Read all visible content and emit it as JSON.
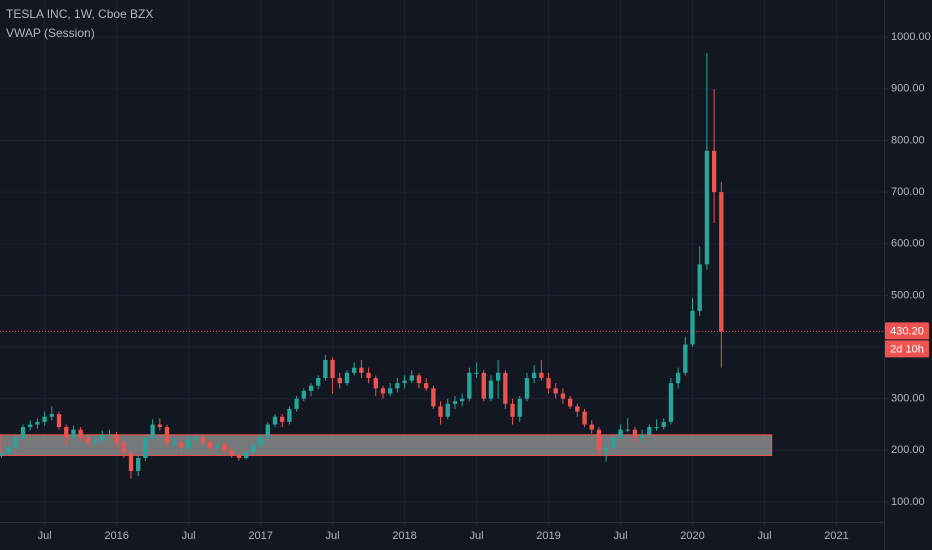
{
  "chart_data": {
    "type": "candlestick",
    "title": "TESLA INC, 1W, Cboe BZX",
    "subtitle": "VWAP (Session)",
    "up_color": "#26a69a",
    "down_color": "#ef5350",
    "grid": true,
    "xlim": [
      2015.19,
      2021.33
    ],
    "xticks": [
      {
        "value": 2015.5,
        "label": "Jul"
      },
      {
        "value": 2016,
        "label": "2016"
      },
      {
        "value": 2016.5,
        "label": "Jul"
      },
      {
        "value": 2017,
        "label": "2017"
      },
      {
        "value": 2017.5,
        "label": "Jul"
      },
      {
        "value": 2018,
        "label": "2018"
      },
      {
        "value": 2018.5,
        "label": "Jul"
      },
      {
        "value": 2019,
        "label": "2019"
      },
      {
        "value": 2019.5,
        "label": "Jul"
      },
      {
        "value": 2020,
        "label": "2020"
      },
      {
        "value": 2020.5,
        "label": "Jul"
      },
      {
        "value": 2021,
        "label": "2021"
      }
    ],
    "ylim": [
      65,
      1072
    ],
    "yticks": [
      {
        "value": 100,
        "label": "100.00"
      },
      {
        "value": 200,
        "label": "200.00"
      },
      {
        "value": 300,
        "label": "300.00"
      },
      {
        "value": 400,
        "label": "400.00"
      },
      {
        "value": 500,
        "label": "500.00"
      },
      {
        "value": 600,
        "label": "600.00"
      },
      {
        "value": 700,
        "label": "700.00"
      },
      {
        "value": 800,
        "label": "800.00"
      },
      {
        "value": 900,
        "label": "900.00"
      },
      {
        "value": 1000,
        "label": "1000.00"
      }
    ],
    "x": [
      2015.2,
      2015.25,
      2015.3,
      2015.35,
      2015.4,
      2015.45,
      2015.5,
      2015.55,
      2015.6,
      2015.65,
      2015.7,
      2015.75,
      2015.8,
      2015.85,
      2015.9,
      2015.95,
      2016.0,
      2016.05,
      2016.1,
      2016.15,
      2016.2,
      2016.25,
      2016.3,
      2016.35,
      2016.4,
      2016.45,
      2016.5,
      2016.55,
      2016.6,
      2016.65,
      2016.7,
      2016.75,
      2016.8,
      2016.85,
      2016.9,
      2016.95,
      2017.0,
      2017.05,
      2017.1,
      2017.15,
      2017.2,
      2017.25,
      2017.3,
      2017.35,
      2017.4,
      2017.45,
      2017.5,
      2017.55,
      2017.6,
      2017.65,
      2017.7,
      2017.75,
      2017.8,
      2017.85,
      2017.9,
      2017.95,
      2018.0,
      2018.05,
      2018.1,
      2018.15,
      2018.2,
      2018.25,
      2018.3,
      2018.35,
      2018.4,
      2018.45,
      2018.5,
      2018.55,
      2018.6,
      2018.65,
      2018.7,
      2018.75,
      2018.8,
      2018.85,
      2018.9,
      2018.95,
      2019.0,
      2019.05,
      2019.1,
      2019.15,
      2019.2,
      2019.25,
      2019.3,
      2019.35,
      2019.4,
      2019.45,
      2019.5,
      2019.55,
      2019.6,
      2019.65,
      2019.7,
      2019.75,
      2019.8,
      2019.85,
      2019.9,
      2019.95,
      2020.0,
      2020.05,
      2020.1,
      2020.15,
      2020.2
    ],
    "ohlc": [
      [
        190,
        200,
        185,
        195
      ],
      [
        195,
        210,
        190,
        205
      ],
      [
        205,
        230,
        200,
        225
      ],
      [
        225,
        250,
        220,
        245
      ],
      [
        245,
        258,
        238,
        250
      ],
      [
        250,
        262,
        242,
        255
      ],
      [
        255,
        275,
        248,
        265
      ],
      [
        265,
        285,
        258,
        270
      ],
      [
        270,
        275,
        240,
        245
      ],
      [
        245,
        250,
        210,
        225
      ],
      [
        225,
        248,
        215,
        240
      ],
      [
        240,
        245,
        218,
        225
      ],
      [
        225,
        230,
        205,
        215
      ],
      [
        215,
        228,
        208,
        220
      ],
      [
        220,
        238,
        215,
        230
      ],
      [
        230,
        240,
        222,
        230
      ],
      [
        230,
        235,
        205,
        215
      ],
      [
        215,
        220,
        185,
        195
      ],
      [
        195,
        200,
        145,
        160
      ],
      [
        160,
        190,
        150,
        185
      ],
      [
        185,
        230,
        180,
        225
      ],
      [
        225,
        260,
        220,
        250
      ],
      [
        250,
        262,
        238,
        245
      ],
      [
        245,
        250,
        205,
        215
      ],
      [
        215,
        225,
        208,
        215
      ],
      [
        215,
        220,
        195,
        205
      ],
      [
        205,
        228,
        200,
        220
      ],
      [
        220,
        232,
        215,
        225
      ],
      [
        225,
        230,
        210,
        215
      ],
      [
        215,
        220,
        198,
        205
      ],
      [
        205,
        218,
        200,
        210
      ],
      [
        210,
        214,
        195,
        200
      ],
      [
        200,
        205,
        185,
        190
      ],
      [
        190,
        195,
        180,
        185
      ],
      [
        185,
        200,
        182,
        195
      ],
      [
        195,
        215,
        192,
        210
      ],
      [
        210,
        230,
        205,
        225
      ],
      [
        225,
        255,
        220,
        250
      ],
      [
        250,
        270,
        245,
        265
      ],
      [
        265,
        270,
        245,
        255
      ],
      [
        255,
        285,
        250,
        280
      ],
      [
        280,
        305,
        275,
        300
      ],
      [
        300,
        320,
        295,
        315
      ],
      [
        315,
        330,
        305,
        325
      ],
      [
        325,
        345,
        318,
        340
      ],
      [
        340,
        385,
        335,
        375
      ],
      [
        375,
        380,
        310,
        340
      ],
      [
        340,
        350,
        320,
        330
      ],
      [
        330,
        355,
        325,
        350
      ],
      [
        350,
        370,
        345,
        360
      ],
      [
        360,
        375,
        340,
        350
      ],
      [
        350,
        360,
        330,
        340
      ],
      [
        340,
        345,
        305,
        320
      ],
      [
        320,
        325,
        300,
        310
      ],
      [
        310,
        330,
        305,
        320
      ],
      [
        320,
        340,
        312,
        330
      ],
      [
        330,
        345,
        320,
        335
      ],
      [
        335,
        355,
        330,
        345
      ],
      [
        345,
        350,
        320,
        330
      ],
      [
        330,
        340,
        315,
        320
      ],
      [
        320,
        325,
        280,
        285
      ],
      [
        285,
        295,
        250,
        265
      ],
      [
        265,
        300,
        260,
        290
      ],
      [
        290,
        305,
        280,
        295
      ],
      [
        295,
        310,
        285,
        300
      ],
      [
        300,
        360,
        295,
        350
      ],
      [
        350,
        370,
        340,
        350
      ],
      [
        350,
        355,
        295,
        300
      ],
      [
        300,
        345,
        295,
        335
      ],
      [
        335,
        375,
        300,
        350
      ],
      [
        350,
        355,
        280,
        290
      ],
      [
        290,
        300,
        250,
        265
      ],
      [
        265,
        305,
        255,
        300
      ],
      [
        300,
        350,
        295,
        340
      ],
      [
        340,
        365,
        330,
        350
      ],
      [
        350,
        375,
        335,
        340
      ],
      [
        340,
        350,
        310,
        320
      ],
      [
        320,
        330,
        300,
        310
      ],
      [
        310,
        320,
        290,
        300
      ],
      [
        300,
        305,
        280,
        285
      ],
      [
        285,
        290,
        265,
        275
      ],
      [
        275,
        280,
        245,
        250
      ],
      [
        250,
        258,
        232,
        240
      ],
      [
        240,
        245,
        190,
        200
      ],
      [
        200,
        215,
        178,
        205
      ],
      [
        205,
        232,
        200,
        225
      ],
      [
        225,
        250,
        220,
        240
      ],
      [
        240,
        262,
        235,
        240
      ],
      [
        240,
        245,
        215,
        225
      ],
      [
        225,
        240,
        218,
        230
      ],
      [
        230,
        250,
        225,
        245
      ],
      [
        245,
        260,
        238,
        245
      ],
      [
        245,
        262,
        240,
        255
      ],
      [
        255,
        340,
        250,
        330
      ],
      [
        330,
        360,
        320,
        350
      ],
      [
        350,
        420,
        345,
        405
      ],
      [
        405,
        495,
        400,
        470
      ],
      [
        470,
        595,
        460,
        560
      ],
      [
        560,
        969,
        550,
        780
      ],
      [
        780,
        900,
        640,
        700
      ],
      [
        700,
        720,
        360,
        430
      ]
    ],
    "zone": {
      "xlim": [
        2015.19,
        2020.55
      ],
      "ylim": [
        190,
        230
      ],
      "color": "#ef5350",
      "fill": "#8a8a8a"
    },
    "last_price": {
      "value": 430.2,
      "label": "430.20"
    },
    "countdown": "2d 10h"
  }
}
